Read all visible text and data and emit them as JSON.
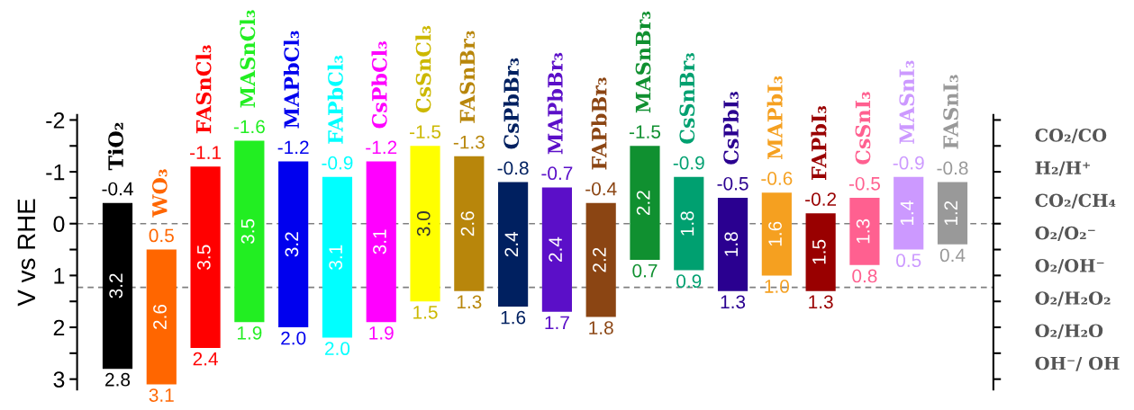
{
  "chart_data": {
    "type": "bar",
    "ylabel": "V vs RHE",
    "categories": [
      "TiO₂",
      "WO₃",
      "FASnCl₃",
      "MASnCl₃",
      "MAPbCl₃",
      "FAPbCl₃",
      "CsPbCl₃",
      "CsSnCl₃",
      "FASnBr₃",
      "CsPbBr₃",
      "MAPbBr₃",
      "FAPbBr₃",
      "MASnBr₃",
      "CsSnBr₃",
      "CsPbI₃",
      "MAPbI₃",
      "FAPbI₃",
      "CsSnI₃",
      "MASnI₃",
      "FASnI₃"
    ],
    "base": [
      -0.4,
      0.5,
      -1.1,
      -1.6,
      -1.2,
      -0.9,
      -1.2,
      -1.5,
      -1.3,
      -0.8,
      -0.7,
      -0.4,
      -1.5,
      -0.9,
      -0.5,
      -0.6,
      -0.2,
      -0.5,
      -0.9,
      -0.8
    ],
    "values": [
      3.2,
      2.6,
      3.5,
      3.5,
      3.2,
      3.1,
      3.1,
      3.0,
      2.6,
      2.4,
      2.4,
      2.2,
      2.2,
      1.8,
      1.8,
      1.6,
      1.5,
      1.3,
      1.4,
      1.2
    ],
    "value_labels": [
      "3.2",
      "2.6",
      "3.5",
      "3.5",
      "3.2",
      "3.1",
      "3.1",
      "3.0",
      "2.6",
      "2.4",
      "2.4",
      "2.2",
      "2.2",
      "1.8",
      "1.8",
      "1.6",
      "1.5",
      "1.3",
      "1.4",
      "1.2"
    ],
    "colors": [
      "#000000",
      "#ff6600",
      "#ff0000",
      "#22ee22",
      "#0000ee",
      "#00ffff",
      "#ff00ff",
      "#ffff00",
      "#b8860b",
      "#002060",
      "#5b0fc8",
      "#8b4513",
      "#109030",
      "#00a070",
      "#2a0090",
      "#f5a020",
      "#990000",
      "#ff6090",
      "#cc99ff",
      "#999999"
    ],
    "annotations": [
      {
        "text": "-0.4",
        "x": "TiO₂",
        "y": -0.4
      },
      {
        "text": "2.8",
        "x": "TiO₂",
        "y": 2.8
      },
      {
        "text": "0.5",
        "x": "WO₃",
        "y": 0.5
      },
      {
        "text": "3.1",
        "x": "WO₃",
        "y": 3.1
      },
      {
        "text": "-1.1",
        "x": "FASnCl₃",
        "y": -1.1
      },
      {
        "text": "2.4",
        "x": "FASnCl₃",
        "y": 2.4
      },
      {
        "text": "-1.6",
        "x": "MASnCl₃",
        "y": -1.6
      },
      {
        "text": "1.9",
        "x": "MASnCl₃",
        "y": 1.9
      },
      {
        "text": "-1.2",
        "x": "MAPbCl₃",
        "y": -1.2
      },
      {
        "text": "2.0",
        "x": "MAPbCl₃",
        "y": 2.0
      },
      {
        "text": "-0.9",
        "x": "FAPbCl₃",
        "y": -0.9
      },
      {
        "text": "2.0",
        "x": "FAPbCl₃",
        "y": 2.2
      },
      {
        "text": "-1.2",
        "x": "CsPbCl₃",
        "y": -1.2
      },
      {
        "text": "1.9",
        "x": "CsPbCl₃",
        "y": 1.9
      },
      {
        "text": "-1.5",
        "x": "CsSnCl₃",
        "y": -1.5
      },
      {
        "text": "1.5",
        "x": "CsSnCl₃",
        "y": 1.5
      },
      {
        "text": "-1.3",
        "x": "FASnBr₃",
        "y": -1.3
      },
      {
        "text": "1.3",
        "x": "FASnBr₃",
        "y": 1.3
      },
      {
        "text": "-0.8",
        "x": "CsPbBr₃",
        "y": -0.8
      },
      {
        "text": "1.6",
        "x": "CsPbBr₃",
        "y": 1.6
      },
      {
        "text": "-0.7",
        "x": "MAPbBr₃",
        "y": -0.7
      },
      {
        "text": "1.7",
        "x": "MAPbBr₃",
        "y": 1.7
      },
      {
        "text": "-0.4",
        "x": "FAPbBr₃",
        "y": -0.4
      },
      {
        "text": "1.8",
        "x": "FAPbBr₃",
        "y": 1.8
      },
      {
        "text": "-1.5",
        "x": "MASnBr₃",
        "y": -1.5
      },
      {
        "text": "0.7",
        "x": "MASnBr₃",
        "y": 0.7
      },
      {
        "text": "-0.9",
        "x": "CsSnBr₃",
        "y": -0.9
      },
      {
        "text": "0.9",
        "x": "CsSnBr₃",
        "y": 0.9
      },
      {
        "text": "-0.5",
        "x": "CsPbI₃",
        "y": -0.5
      },
      {
        "text": "1.3",
        "x": "CsPbI₃",
        "y": 1.3
      },
      {
        "text": "-0.6",
        "x": "MAPbI₃",
        "y": -0.6
      },
      {
        "text": "1.0",
        "x": "MAPbI₃",
        "y": 1.0
      },
      {
        "text": "-0.2",
        "x": "FAPbI₃",
        "y": -0.2
      },
      {
        "text": "1.3",
        "x": "FAPbI₃",
        "y": 1.3
      },
      {
        "text": "-0.5",
        "x": "CsSnI₃",
        "y": -0.5
      },
      {
        "text": "0.8",
        "x": "CsSnI₃",
        "y": 0.8
      },
      {
        "text": "-0.9",
        "x": "MASnI₃",
        "y": -0.9
      },
      {
        "text": "0.5",
        "x": "MASnI₃",
        "y": 0.5
      },
      {
        "text": "-0.8",
        "x": "FASnI₃",
        "y": -0.8
      },
      {
        "text": "0.4",
        "x": "FASnI₃",
        "y": 0.4
      },
      "CO₂/CO",
      "H₂/H⁺",
      "CO₂/CH₄",
      "O₂/O₂⁻",
      "O₂/OH⁻",
      "O₂/H₂O₂",
      "O₂/H₂O",
      "OH⁻/ OH"
    ],
    "ylim": [
      3.2,
      -2.1
    ],
    "yticks": [
      -2,
      {
        "value": -1.5,
        "label": null
      },
      -1,
      {
        "value": -0.5,
        "label": null
      },
      0,
      {
        "value": 0.5,
        "label": null
      },
      1,
      {
        "value": 1.5,
        "label": null
      },
      2,
      {
        "value": 2.5,
        "label": null
      },
      3
    ],
    "ref_lines": [
      {
        "axis": "y",
        "value": 0,
        "color": "#808080",
        "line_style": "dashed"
      },
      {
        "axis": "y",
        "value": 1.23,
        "color": "#808080",
        "line_style": "dashed"
      }
    ],
    "grid": false,
    "legend": false
  }
}
